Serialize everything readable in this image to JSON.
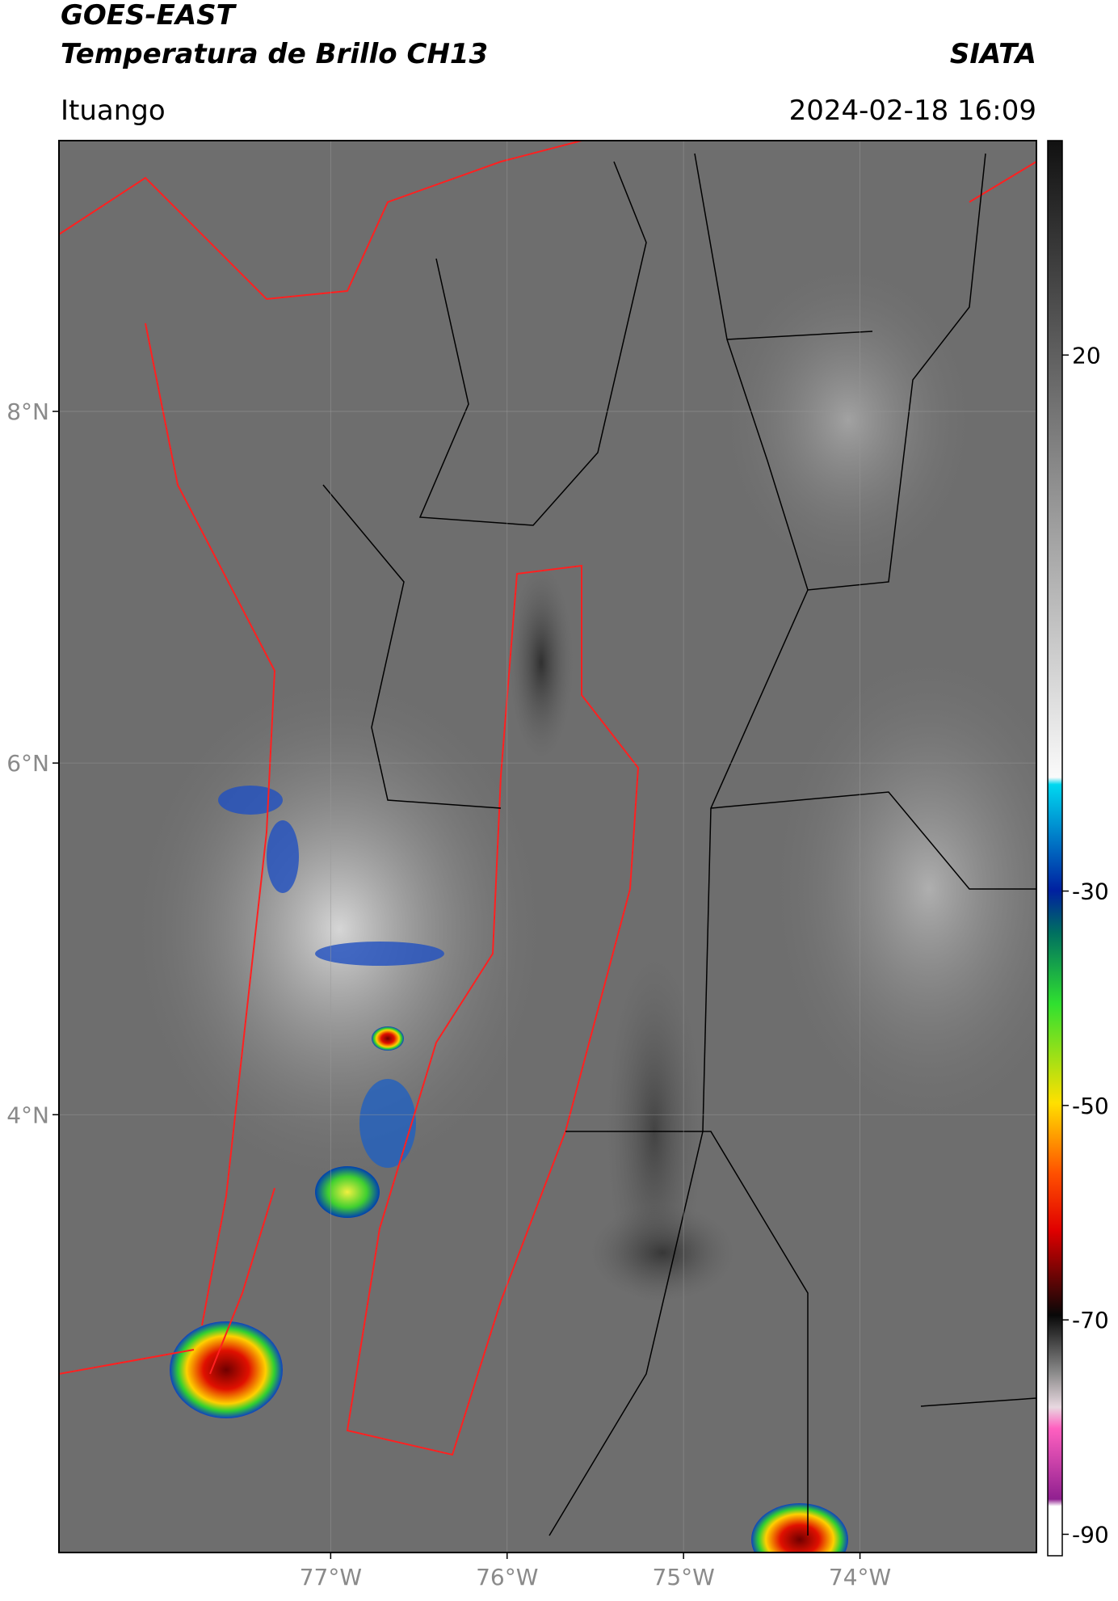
{
  "header": {
    "title_line1": "GOES-EAST",
    "title_line2": "Temperatura de Brillo CH13",
    "organization": "SIATA",
    "location": "Ituango",
    "datetime": "2024-02-18 16:09"
  },
  "map": {
    "lon_lim": [
      -78.54,
      -73.0
    ],
    "lat_lim": [
      1.51,
      9.54
    ],
    "lon_ticks": [
      {
        "value": -77,
        "label": "77°W"
      },
      {
        "value": -76,
        "label": "76°W"
      },
      {
        "value": -75,
        "label": "75°W"
      },
      {
        "value": -74,
        "label": "74°W"
      }
    ],
    "lat_ticks": [
      {
        "value": 8,
        "label": "8°N"
      },
      {
        "value": 6,
        "label": "6°N"
      },
      {
        "value": 4,
        "label": "4°N"
      }
    ],
    "grid": true
  },
  "colorbar": {
    "lim": [
      -92,
      40
    ],
    "ticks": [
      20,
      -30,
      -50,
      -70,
      -90
    ]
  }
}
